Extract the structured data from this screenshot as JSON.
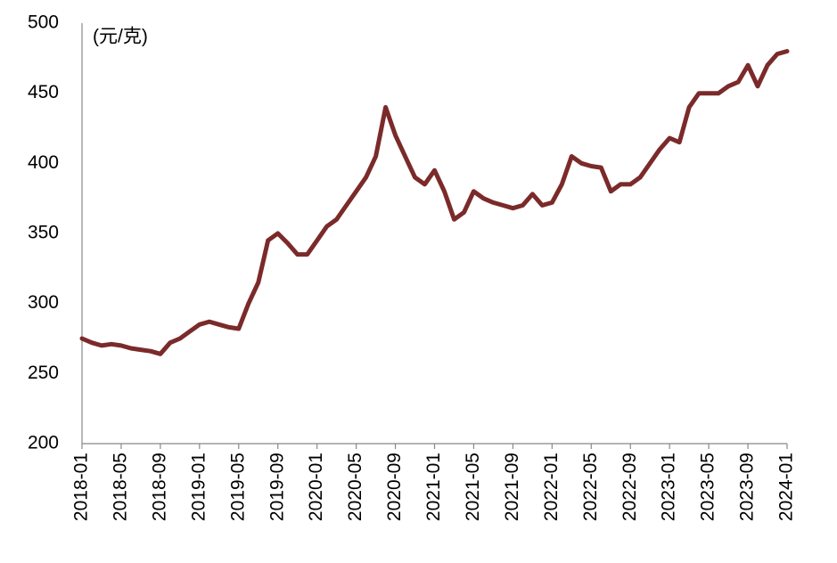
{
  "chart_data": {
    "type": "line",
    "unit_label": "(元/克)",
    "x": [
      "2018-01",
      "2018-02",
      "2018-03",
      "2018-04",
      "2018-05",
      "2018-06",
      "2018-07",
      "2018-08",
      "2018-09",
      "2018-10",
      "2018-11",
      "2018-12",
      "2019-01",
      "2019-02",
      "2019-03",
      "2019-04",
      "2019-05",
      "2019-06",
      "2019-07",
      "2019-08",
      "2019-09",
      "2019-10",
      "2019-11",
      "2019-12",
      "2020-01",
      "2020-02",
      "2020-03",
      "2020-04",
      "2020-05",
      "2020-06",
      "2020-07",
      "2020-08",
      "2020-09",
      "2020-10",
      "2020-11",
      "2020-12",
      "2021-01",
      "2021-02",
      "2021-03",
      "2021-04",
      "2021-05",
      "2021-06",
      "2021-07",
      "2021-08",
      "2021-09",
      "2021-10",
      "2021-11",
      "2021-12",
      "2022-01",
      "2022-02",
      "2022-03",
      "2022-04",
      "2022-05",
      "2022-06",
      "2022-07",
      "2022-08",
      "2022-09",
      "2022-10",
      "2022-11",
      "2022-12",
      "2023-01",
      "2023-02",
      "2023-03",
      "2023-04",
      "2023-05",
      "2023-06",
      "2023-07",
      "2023-08",
      "2023-09",
      "2023-10",
      "2023-11",
      "2023-12",
      "2024-01"
    ],
    "series": [
      {
        "color": "#7b2a2a",
        "values": [
          275,
          272,
          270,
          271,
          270,
          268,
          267,
          266,
          264,
          272,
          275,
          280,
          285,
          287,
          285,
          283,
          282,
          300,
          315,
          345,
          350,
          343,
          335,
          335,
          345,
          355,
          360,
          370,
          380,
          390,
          405,
          440,
          420,
          405,
          390,
          385,
          395,
          380,
          360,
          365,
          380,
          375,
          372,
          370,
          368,
          370,
          378,
          370,
          372,
          385,
          405,
          400,
          398,
          397,
          380,
          385,
          385,
          390,
          400,
          410,
          418,
          415,
          440,
          450,
          450,
          450,
          455,
          458,
          470,
          455,
          470,
          478,
          480
        ]
      }
    ],
    "xticks": [
      "2018-01",
      "2018-05",
      "2018-09",
      "2019-01",
      "2019-05",
      "2019-09",
      "2020-01",
      "2020-05",
      "2020-09",
      "2021-01",
      "2021-05",
      "2021-09",
      "2022-01",
      "2022-05",
      "2022-09",
      "2023-01",
      "2023-05",
      "2023-09",
      "2024-01"
    ],
    "ylim": [
      200,
      500
    ],
    "yticks": [
      200,
      250,
      300,
      350,
      400,
      450,
      500
    ]
  }
}
